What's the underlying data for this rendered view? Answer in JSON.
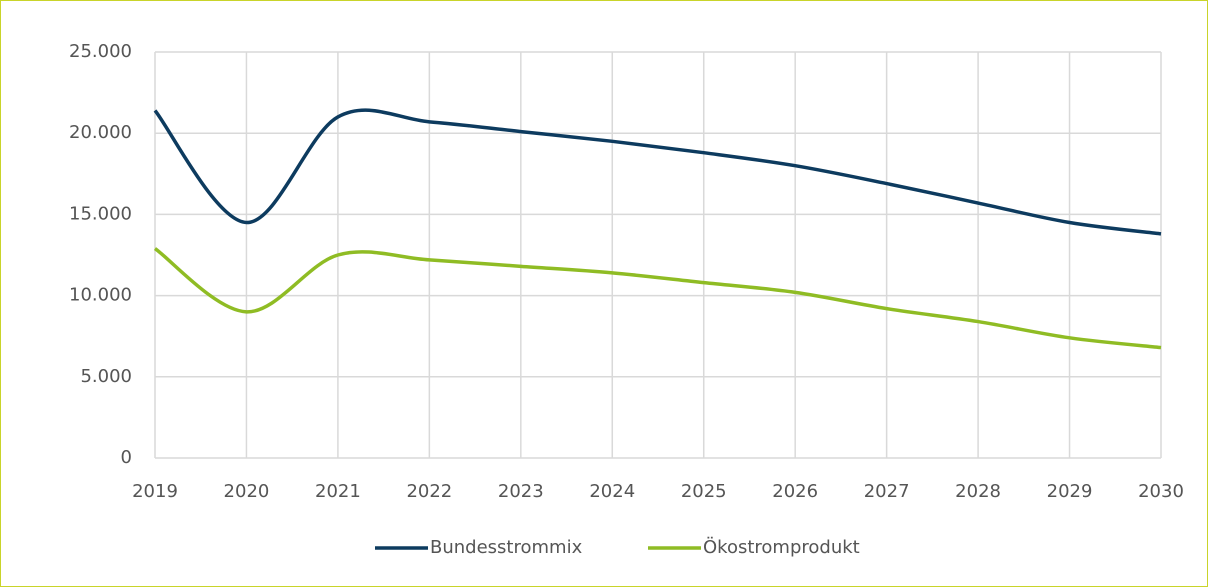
{
  "chart_data": {
    "type": "line",
    "categories": [
      "2019",
      "2020",
      "2021",
      "2022",
      "2023",
      "2024",
      "2025",
      "2026",
      "2027",
      "2028",
      "2029",
      "2030"
    ],
    "series": [
      {
        "name": "Bundesstrommix",
        "color": "#0d3b5f",
        "values": [
          21400,
          14500,
          21000,
          20700,
          20100,
          19500,
          18800,
          18000,
          16900,
          15700,
          14500,
          13800
        ]
      },
      {
        "name": "Ökostromprodukt",
        "color": "#8fbc24",
        "values": [
          12900,
          9000,
          12500,
          12200,
          11800,
          11400,
          10800,
          10200,
          9200,
          8400,
          7400,
          6800
        ]
      }
    ],
    "ylim": [
      0,
      25000
    ],
    "yticks": [
      0,
      {
        "value": 5000,
        "label": "5.000"
      },
      {
        "value": 10000,
        "label": "10.000"
      },
      {
        "value": 15000,
        "label": "15.000"
      },
      {
        "value": 20000,
        "label": "20.000"
      },
      {
        "value": 25000,
        "label": "25.000"
      }
    ],
    "grid": true,
    "smooth": true,
    "legend": "bottom"
  }
}
